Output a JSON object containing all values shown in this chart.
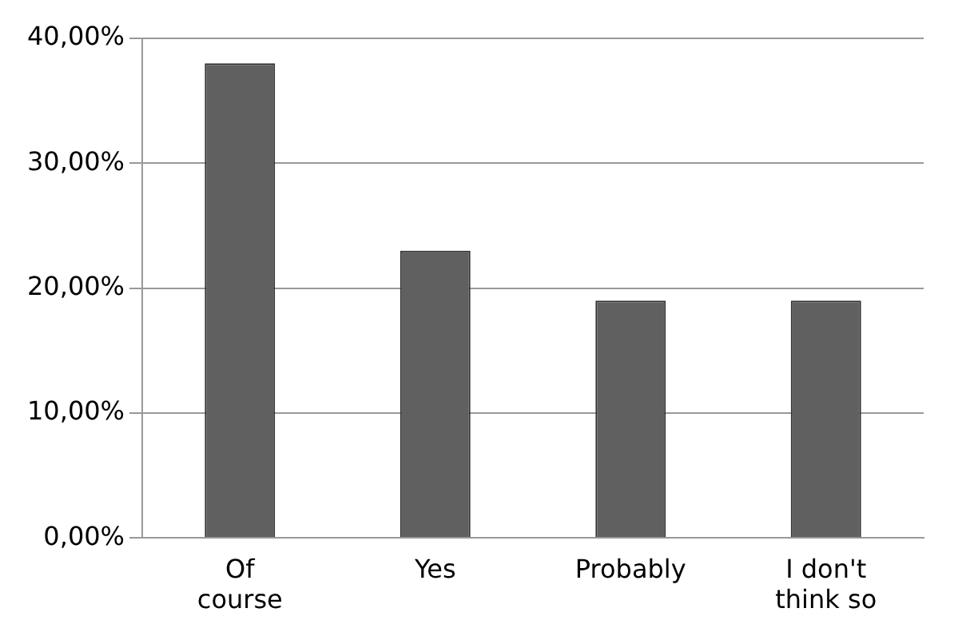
{
  "chart_data": {
    "type": "bar",
    "categories": [
      "Of course",
      "Yes",
      "Probably",
      "I don't think so"
    ],
    "values": [
      38,
      23,
      19,
      19
    ],
    "color": "#606060",
    "ylim": [
      0,
      40
    ],
    "yticks": [
      {
        "value": 0,
        "label": "0,00%"
      },
      {
        "value": 10,
        "label": "10,00%"
      },
      {
        "value": 20,
        "label": "20,00%"
      },
      {
        "value": 30,
        "label": "30,00%"
      },
      {
        "value": 40,
        "label": "40,00%"
      }
    ],
    "grid": "y"
  }
}
